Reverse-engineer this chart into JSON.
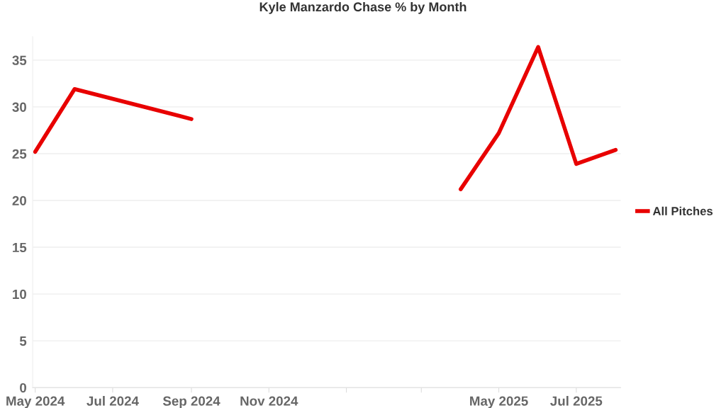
{
  "chart_data": {
    "type": "line",
    "title": "Kyle Manzardo Chase % by Month",
    "series": [
      {
        "name": "All Pitches",
        "color": "#e80000",
        "x": [
          "2024-05",
          "2024-06",
          "2024-09",
          "2024-10",
          "2025-04",
          "2025-05",
          "2025-06",
          "2025-07",
          "2025-08"
        ],
        "values": [
          25.2,
          31.9,
          28.7,
          null,
          21.2,
          27.2,
          36.4,
          23.9,
          25.4
        ]
      }
    ],
    "xlim": [
      "2024-04-29",
      "2025-08-05"
    ],
    "xticks": [
      {
        "value": "2024-05",
        "label": "May 2024"
      },
      {
        "value": "2024-07",
        "label": "Jul 2024"
      },
      {
        "value": "2024-09",
        "label": "Sep 2024"
      },
      {
        "value": "2024-11",
        "label": "Nov 2024"
      },
      {
        "value": "2025-01",
        "label": null
      },
      {
        "value": "2025-03",
        "label": null
      },
      {
        "value": "2025-05",
        "label": "May 2025"
      },
      {
        "value": "2025-07",
        "label": "Jul 2025"
      }
    ],
    "ylim": [
      0,
      37.5
    ],
    "yticks": [
      0,
      5,
      10,
      15,
      20,
      25,
      30,
      35
    ],
    "grid": "y",
    "legend": "right",
    "marker": "none",
    "line_style": "solid"
  }
}
